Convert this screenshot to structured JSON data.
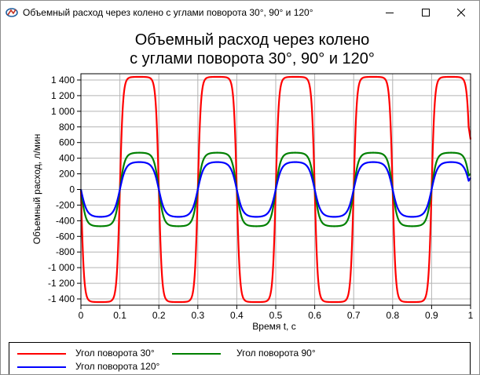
{
  "window": {
    "title": "Объемный расход через колено с углами поворота 30°, 90° и 120°",
    "icon": "chart-app-icon",
    "controls": [
      "minimize-icon",
      "maximize-icon",
      "close-icon"
    ]
  },
  "chart_data": {
    "type": "line",
    "title_lines": [
      "Объемный расход через колено",
      "с углами поворота 30°, 90° и 120°"
    ],
    "xlabel": "Время t, c",
    "ylabel": "Объемный расход, л/мин",
    "xlim": [
      0,
      1
    ],
    "ylim": [
      -1480,
      1480
    ],
    "grid": true,
    "legend_position": "bottom",
    "x_ticks": [
      {
        "v": 0,
        "label": "0"
      },
      {
        "v": 0.1,
        "label": "0.1"
      },
      {
        "v": 0.2,
        "label": "0.2"
      },
      {
        "v": 0.3,
        "label": "0.3"
      },
      {
        "v": 0.4,
        "label": "0.4"
      },
      {
        "v": 0.5,
        "label": "0.5"
      },
      {
        "v": 0.6,
        "label": "0.6"
      },
      {
        "v": 0.7,
        "label": "0.7"
      },
      {
        "v": 0.8,
        "label": "0.8"
      },
      {
        "v": 0.9,
        "label": "0.9"
      },
      {
        "v": 1,
        "label": "1"
      }
    ],
    "y_ticks": [
      {
        "v": 1400,
        "label": "1 400"
      },
      {
        "v": 1200,
        "label": "1 200"
      },
      {
        "v": 1000,
        "label": "1 000"
      },
      {
        "v": 800,
        "label": "800"
      },
      {
        "v": 600,
        "label": "600"
      },
      {
        "v": 400,
        "label": "400"
      },
      {
        "v": 200,
        "label": "200"
      },
      {
        "v": 0,
        "label": "0"
      },
      {
        "v": -200,
        "label": "-200"
      },
      {
        "v": -400,
        "label": "-400"
      },
      {
        "v": -600,
        "label": "-600"
      },
      {
        "v": -800,
        "label": "-800"
      },
      {
        "v": -1000,
        "label": "-1 000"
      },
      {
        "v": -1200,
        "label": "-1 200"
      },
      {
        "v": -1400,
        "label": "-1 400"
      }
    ],
    "period": 0.2,
    "x_end": 0.995,
    "series": [
      {
        "name": "Угол поворота 30°",
        "color": "#ff0000",
        "amplitude": 1440,
        "shape": 4,
        "end_value": 640
      },
      {
        "name": "Угол поворота 90°",
        "color": "#008000",
        "amplitude": 470,
        "shape": 2.5,
        "end_value": 200
      },
      {
        "name": "Угол поворота 120°",
        "color": "#0000ff",
        "amplitude": 350,
        "shape": 2,
        "end_value": 150
      }
    ]
  }
}
